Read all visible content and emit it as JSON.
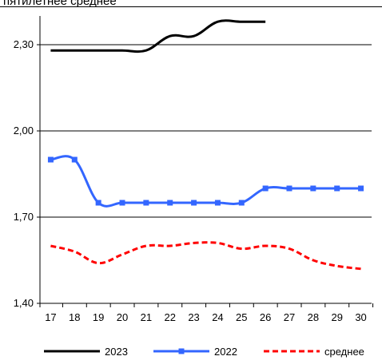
{
  "chart_data": {
    "type": "line",
    "title": "пятилетнее среднее",
    "x": [
      17,
      18,
      19,
      20,
      21,
      22,
      23,
      24,
      25,
      26,
      27,
      28,
      29,
      30
    ],
    "x_tick_labels": [
      "17",
      "18",
      "19",
      "20",
      "21",
      "22",
      "23",
      "24",
      "25",
      "26",
      "27",
      "28",
      "29",
      "30"
    ],
    "y_tick_labels": [
      "1,40",
      "1,70",
      "2,00",
      "2,30"
    ],
    "y_ticks": [
      1.4,
      1.7,
      2.0,
      2.3
    ],
    "ylim": [
      1.4,
      2.38
    ],
    "xlabel": "",
    "ylabel": "",
    "grid": "horizontal",
    "legend_position": "bottom",
    "series": [
      {
        "name": "2023",
        "color": "#000000",
        "line_style": "solid",
        "marker": "none",
        "x": [
          17,
          18,
          19,
          20,
          21,
          22,
          23,
          24,
          25,
          26
        ],
        "values": [
          2.28,
          2.28,
          2.28,
          2.28,
          2.28,
          2.33,
          2.33,
          2.38,
          2.38,
          2.38
        ]
      },
      {
        "name": "2022",
        "color": "#3366ff",
        "line_style": "solid",
        "marker": "square",
        "x": [
          17,
          18,
          19,
          20,
          21,
          22,
          23,
          24,
          25,
          26,
          27,
          28,
          29,
          30
        ],
        "values": [
          1.9,
          1.9,
          1.75,
          1.75,
          1.75,
          1.75,
          1.75,
          1.75,
          1.75,
          1.8,
          1.8,
          1.8,
          1.8,
          1.8
        ]
      },
      {
        "name": "среднее",
        "color": "#ff0000",
        "line_style": "dashed",
        "marker": "none",
        "x": [
          17,
          18,
          19,
          20,
          21,
          22,
          23,
          24,
          25,
          26,
          27,
          28,
          29,
          30
        ],
        "values": [
          1.6,
          1.58,
          1.54,
          1.57,
          1.6,
          1.6,
          1.61,
          1.61,
          1.59,
          1.6,
          1.59,
          1.55,
          1.53,
          1.52
        ]
      }
    ]
  }
}
